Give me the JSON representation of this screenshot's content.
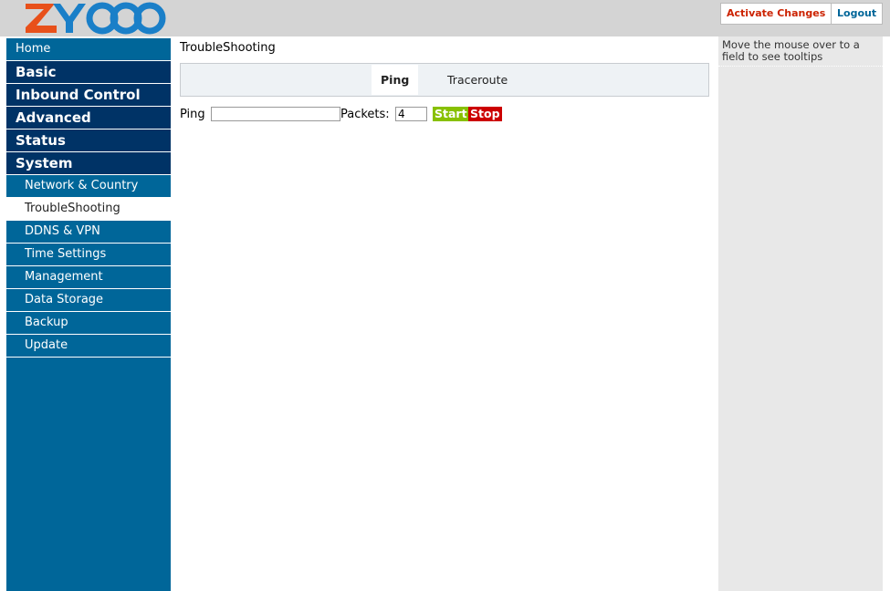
{
  "header": {
    "activate_button": "Activate Changes",
    "logout_button": "Logout"
  },
  "sidebar": {
    "home": "Home",
    "sections": [
      "Basic",
      "Inbound Control",
      "Advanced",
      "Status",
      "System"
    ],
    "system_items": [
      "Network & Country",
      "TroubleShooting",
      "DDNS & VPN",
      "Time Settings",
      "Management",
      "Data Storage",
      "Backup",
      "Update"
    ]
  },
  "main": {
    "title": "TroubleShooting",
    "tabs": [
      "Ping",
      "Traceroute"
    ],
    "form": {
      "ping_label": "Ping",
      "packets_label": "Packets:",
      "packets_value": "4",
      "start_button": "Start",
      "stop_button": "Stop"
    }
  },
  "help": {
    "tooltip": "Move the mouse over to a field to see tooltips"
  }
}
